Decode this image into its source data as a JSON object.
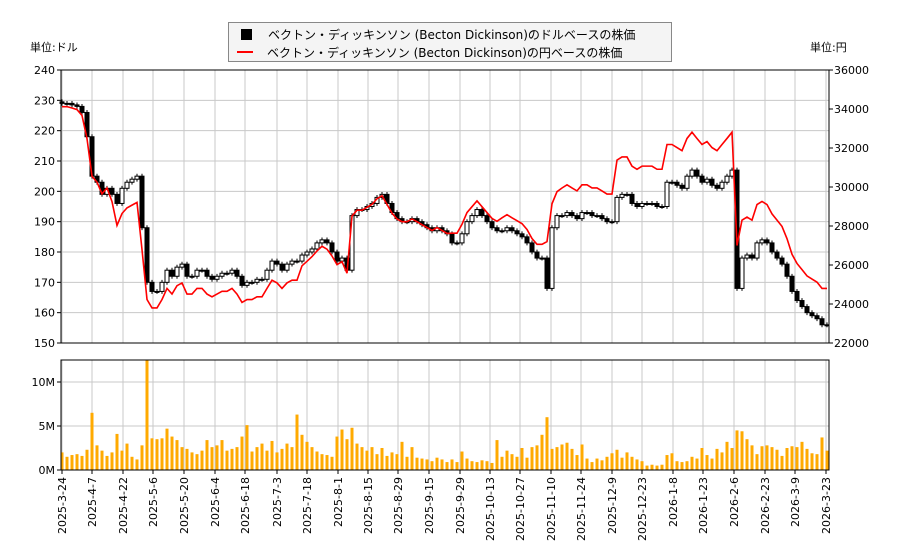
{
  "units": {
    "left": "単位:ドル",
    "right": "単位:円"
  },
  "legend": {
    "usd": "ベクトン・ディッキンソン (Becton Dickinson)のドルベースの株価",
    "jpy": "ベクトン・ディッキンソン (Becton Dickinson)の円ベースの株価"
  },
  "colors": {
    "candle": "#000000",
    "jpy_line": "#ff0000",
    "volume": "#ffaa00",
    "grid": "#c8c8c8"
  },
  "chart_data": [
    {
      "type": "candlestick+line",
      "ylim_left": [
        150,
        240
      ],
      "ylim_right": [
        22000,
        36000
      ],
      "yticks_left": [
        "150",
        "160",
        "170",
        "180",
        "190",
        "200",
        "210",
        "220",
        "230",
        "240"
      ],
      "yticks_right": [
        "22000",
        "24000",
        "26000",
        "28000",
        "30000",
        "32000",
        "34000",
        "36000"
      ],
      "grid": true,
      "usd_close": [
        229,
        229,
        228.5,
        228,
        226,
        218,
        205,
        203,
        199,
        201,
        199,
        196,
        201,
        203,
        204,
        205,
        188,
        170,
        167,
        167,
        170,
        174,
        172,
        175,
        176,
        172,
        172,
        174,
        174,
        172,
        171,
        172,
        173,
        173,
        174,
        172,
        169,
        170,
        170,
        171,
        171,
        174,
        177,
        176,
        174,
        176,
        177,
        177,
        179,
        180,
        181,
        183,
        184,
        183,
        180,
        177,
        178,
        174,
        192,
        194,
        194,
        195,
        196,
        198,
        199,
        196,
        193,
        191,
        190,
        190,
        191,
        190,
        189,
        188,
        187,
        188,
        187,
        186,
        183,
        183,
        186,
        190,
        192,
        194,
        192,
        190,
        188,
        187,
        187,
        188,
        187,
        186,
        185,
        183,
        180,
        178,
        178,
        168,
        188,
        192,
        192,
        193,
        192,
        191,
        193,
        193,
        192,
        192,
        191,
        190,
        190,
        198,
        199,
        199,
        196,
        195,
        196,
        196,
        196,
        195,
        195,
        203,
        203,
        202,
        201,
        205,
        207,
        205,
        203,
        204,
        202,
        201,
        203,
        205,
        207,
        168,
        178,
        179,
        178,
        183,
        184,
        183,
        180,
        178,
        176,
        172,
        167,
        164,
        162,
        160,
        159,
        158,
        156,
        156
      ],
      "jpy_close": [
        34120,
        34120,
        34050,
        33970,
        33670,
        32480,
        30550,
        30250,
        29650,
        29950,
        29250,
        28030,
        28640,
        28930,
        29070,
        29210,
        26790,
        24230,
        23800,
        23800,
        24230,
        24800,
        24510,
        24940,
        25080,
        24510,
        24510,
        24800,
        24800,
        24510,
        24370,
        24510,
        24650,
        24650,
        24800,
        24510,
        24080,
        24230,
        24230,
        24370,
        24370,
        24800,
        25220,
        25080,
        24800,
        25080,
        25220,
        25220,
        25960,
        26190,
        26430,
        26720,
        26960,
        26810,
        26460,
        26020,
        26170,
        25580,
        28510,
        28810,
        28810,
        28960,
        29110,
        29400,
        29550,
        29110,
        28660,
        28360,
        28220,
        28220,
        28360,
        28220,
        28070,
        27920,
        27770,
        27920,
        27770,
        27620,
        27630,
        27630,
        28090,
        28690,
        28990,
        29290,
        28990,
        28690,
        28390,
        28240,
        28420,
        28580,
        28420,
        28270,
        28120,
        27820,
        27360,
        27060,
        27060,
        27200,
        29140,
        29760,
        29950,
        30110,
        29950,
        29800,
        30110,
        30110,
        29950,
        29950,
        29800,
        29640,
        29640,
        31380,
        31540,
        31540,
        31070,
        30910,
        31070,
        31070,
        31070,
        30910,
        30910,
        32180,
        32180,
        32020,
        31860,
        32490,
        32810,
        32490,
        32180,
        32330,
        32020,
        31860,
        32180,
        32490,
        32810,
        27000,
        28300,
        28460,
        28300,
        29100,
        29260,
        29100,
        28620,
        28300,
        27980,
        27350,
        26550,
        26080,
        25760,
        25440,
        25280,
        25120,
        24800,
        24800
      ]
    },
    {
      "type": "bar",
      "ylim": [
        0,
        12.5
      ],
      "yticks": [
        "0M",
        "5M",
        "10M"
      ],
      "volume_millions": [
        2.0,
        1.5,
        1.7,
        1.8,
        1.6,
        2.3,
        6.5,
        2.8,
        2.2,
        1.6,
        2.0,
        4.1,
        2.2,
        3.0,
        1.5,
        1.2,
        2.8,
        12.5,
        3.6,
        3.5,
        3.6,
        4.7,
        3.8,
        3.4,
        2.6,
        2.4,
        2.0,
        1.8,
        2.2,
        3.4,
        2.6,
        2.8,
        3.4,
        2.2,
        2.4,
        2.6,
        3.8,
        5.1,
        2.1,
        2.6,
        3.0,
        2.2,
        3.3,
        2.0,
        2.4,
        3.0,
        2.6,
        6.3,
        4.0,
        3.2,
        2.6,
        2.1,
        1.8,
        1.7,
        1.5,
        3.8,
        4.6,
        3.5,
        4.8,
        3.0,
        2.6,
        2.2,
        2.6,
        1.8,
        2.5,
        1.6,
        2.0,
        1.8,
        3.2,
        1.5,
        2.6,
        1.4,
        1.3,
        1.2,
        1.0,
        1.4,
        1.2,
        0.9,
        1.2,
        0.9,
        2.1,
        1.3,
        1.0,
        0.9,
        1.1,
        1.0,
        0.8,
        3.4,
        1.5,
        2.2,
        1.8,
        1.5,
        2.5,
        1.4,
        2.6,
        2.8,
        4.0,
        6.0,
        2.4,
        2.6,
        2.9,
        3.1,
        2.4,
        1.7,
        2.9,
        1.3,
        0.9,
        1.3,
        1.1,
        1.5,
        1.9,
        2.3,
        1.4,
        2.0,
        1.5,
        1.2,
        1.0,
        0.5,
        0.6,
        0.5,
        0.6,
        1.7,
        1.9,
        1.0,
        0.9,
        1.0,
        1.5,
        1.3,
        2.5,
        1.7,
        1.3,
        2.4,
        2.0,
        3.2,
        2.5,
        4.5,
        4.4,
        3.5,
        2.8,
        1.8,
        2.7,
        2.8,
        2.6,
        2.3,
        1.6,
        2.5,
        2.7,
        2.6,
        3.2,
        2.4,
        1.9,
        1.8,
        3.7,
        2.2
      ]
    }
  ],
  "xticks": [
    "2025-3-24",
    "2025-4-7",
    "2025-4-22",
    "2025-5-6",
    "2025-5-20",
    "2025-6-4",
    "2025-6-18",
    "2025-7-3",
    "2025-7-18",
    "2025-8-1",
    "2025-8-15",
    "2025-8-29",
    "2025-9-15",
    "2025-9-29",
    "2025-10-13",
    "2025-10-27",
    "2025-11-10",
    "2025-11-24",
    "2025-12-9",
    "2025-12-23",
    "2026-1-8",
    "2026-1-23",
    "2026-2-6",
    "2026-2-23",
    "2026-3-9",
    "2026-3-23"
  ]
}
